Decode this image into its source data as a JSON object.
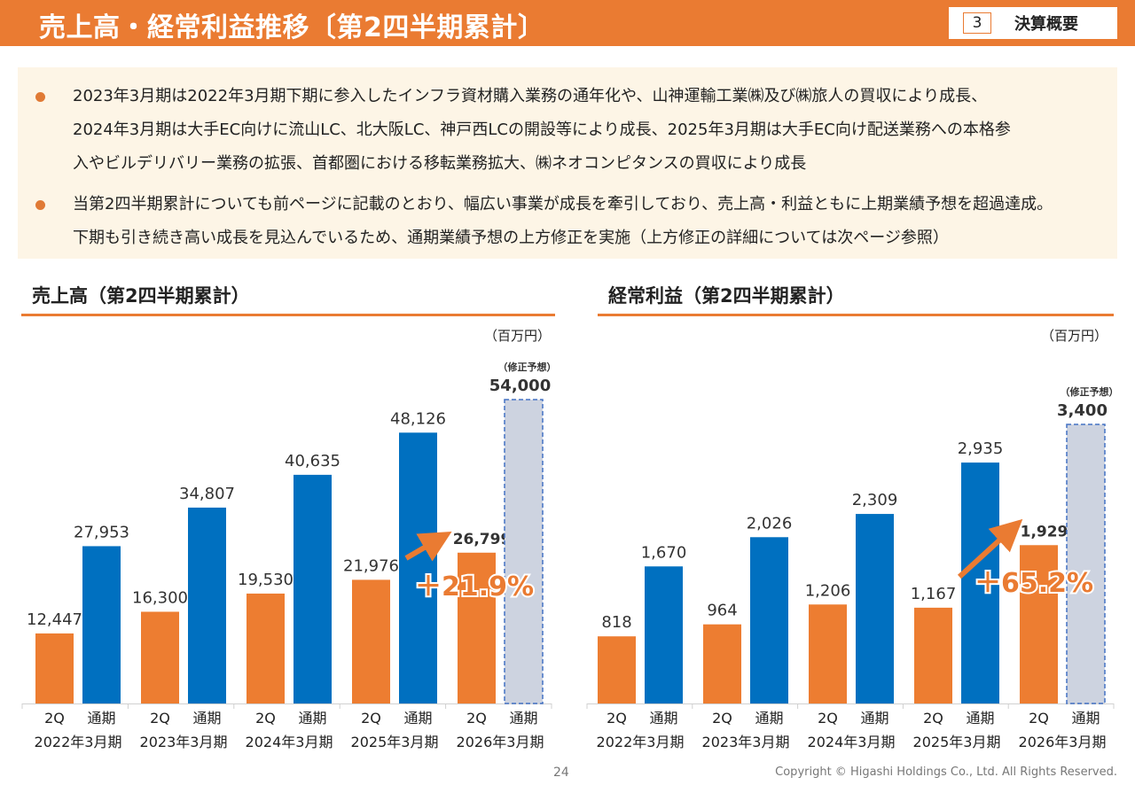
{
  "header": {
    "title": "売上高・経常利益推移〔第2四半期累計〕",
    "section_number": "3",
    "section_label": "決算概要"
  },
  "summary": {
    "bullets": [
      {
        "lines": [
          "2023年3月期は2022年3月期下期に参入したインフラ資材購入業務の通年化や、山神運輸工業㈱及び㈱旅人の買収により成長、",
          "2024年3月期は大手EC向けに流山LC、北大阪LC、神戸西LCの開設等により成長、2025年3月期は大手EC向け配送業務への本格参",
          "入やビルデリバリー業務の拡張、首都圏における移転業務拡大、㈱ネオコンピタンスの買収により成長"
        ]
      },
      {
        "lines": [
          "当第2四半期累計についても前ページに記載のとおり、幅広い事業が成長を牽引しており、売上高・利益ともに上期業績予想を超過達成。",
          "下期も引き続き高い成長を見込んでいるため、通期業績予想の上方修正を実施（上方修正の詳細については次ページ参照）"
        ]
      }
    ]
  },
  "colors": {
    "brand_orange": "#ea7b32",
    "bar_2q": "#ed7d31",
    "bar_full": "#0070c0",
    "bar_forecast": "#cdd3e0",
    "forecast_border": "#4472c4"
  },
  "chart_data": [
    {
      "type": "bar",
      "title": "売上高（第2四半期累計）",
      "unit": "（百万円）",
      "categories": [
        "2022年3月期",
        "2023年3月期",
        "2024年3月期",
        "2025年3月期",
        "2026年3月期"
      ],
      "subcategories": [
        "2Q",
        "通期"
      ],
      "series": [
        {
          "name": "2Q",
          "values": [
            12447,
            16300,
            19530,
            21976,
            26799
          ],
          "labels": [
            "12,447",
            "16,300",
            "19,530",
            "21,976",
            "26,799"
          ]
        },
        {
          "name": "通期",
          "values": [
            27953,
            34807,
            40635,
            48126,
            54000
          ],
          "labels": [
            "27,953",
            "34,807",
            "40,635",
            "48,126",
            "54,000"
          ],
          "forecast_index": 4
        }
      ],
      "forecast_note": "（修正予想）",
      "growth_label": "＋21.9%",
      "ylim": [
        0,
        54000
      ],
      "grid": false,
      "legend": "none"
    },
    {
      "type": "bar",
      "title": "経常利益（第2四半期累計）",
      "unit": "（百万円）",
      "categories": [
        "2022年3月期",
        "2023年3月期",
        "2024年3月期",
        "2025年3月期",
        "2026年3月期"
      ],
      "subcategories": [
        "2Q",
        "通期"
      ],
      "series": [
        {
          "name": "2Q",
          "values": [
            818,
            964,
            1206,
            1167,
            1929
          ],
          "labels": [
            "818",
            "964",
            "1,206",
            "1,167",
            "1,929"
          ]
        },
        {
          "name": "通期",
          "values": [
            1670,
            2026,
            2309,
            2935,
            3400
          ],
          "labels": [
            "1,670",
            "2,026",
            "2,309",
            "2,935",
            "3,400"
          ],
          "forecast_index": 4
        }
      ],
      "forecast_note": "（修正予想）",
      "growth_label": "＋65.2%",
      "ylim": [
        0,
        3400
      ],
      "grid": false,
      "legend": "none"
    }
  ],
  "footer": {
    "page_number": "24",
    "copyright": "Copyright © Higashi Holdings Co., Ltd. All Rights Reserved."
  }
}
